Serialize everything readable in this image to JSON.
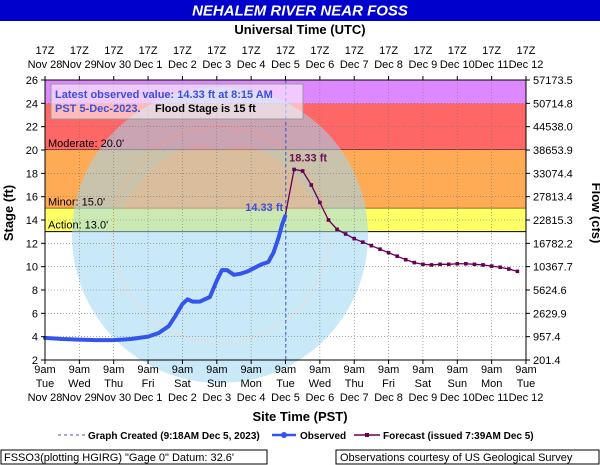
{
  "title": "NEHALEM RIVER NEAR FOSS",
  "top_axis_title": "Universal Time (UTC)",
  "bottom_axis_title": "Site Time (PST)",
  "left_axis_title": "Stage (ft)",
  "right_axis_title": "Flow (cfs)",
  "info_box": {
    "line1": "Latest observed value: 14.33 ft at 8:15 AM",
    "line2a": "PST 5-Dec-2023.",
    "line2b": "Flood Stage is 15 ft"
  },
  "peak_label": "18.33 ft",
  "latest_label": "14.33 ft",
  "flood_zones": [
    {
      "label": "Moderate: 20.0'",
      "from": 20,
      "to": 26,
      "color": "#ff6666"
    },
    {
      "label": "Minor: 15.0'",
      "from": 15,
      "to": 20,
      "color": "#ffaa55"
    },
    {
      "label": "Action: 13.0'",
      "from": 13,
      "to": 15,
      "color": "#ffff66"
    }
  ],
  "top_band_color": "#dd88ff",
  "legend": {
    "graph_created": "Graph Created (9:18AM Dec 5, 2023)",
    "observed": "Observed",
    "forecast": "Forecast (issued 7:39AM Dec 5)"
  },
  "footer": {
    "left": "FSSO3(plotting HGIRG) \"Gage 0\" Datum: 32.6'",
    "right": "Observations courtesy of US Geological Survey"
  },
  "colors": {
    "observed": "#3355ee",
    "forecast": "#660055",
    "title_bg": "#0000cc",
    "created_line": "#3355ee"
  },
  "chart_data": {
    "type": "line",
    "x_unit": "days after 9am Nov 28 (PST)",
    "xlim": [
      0,
      14
    ],
    "ylim": [
      2,
      26
    ],
    "y_ticks": [
      2,
      4,
      6,
      8,
      10,
      12,
      14,
      16,
      18,
      20,
      22,
      24,
      26
    ],
    "flow_ticks": [
      "201.4",
      "957.4",
      "2629.9",
      "5624.6",
      "10367.7",
      "16782.2",
      "22815.3",
      "27813.4",
      "33074.4",
      "38653.9",
      "44538.0",
      "50714.8",
      "57173.5"
    ],
    "bottom_ticks": [
      {
        "time": "9am",
        "day": "Tue",
        "date": "Nov 28"
      },
      {
        "time": "9am",
        "day": "Wed",
        "date": "Nov 29"
      },
      {
        "time": "9am",
        "day": "Thu",
        "date": "Nov 30"
      },
      {
        "time": "9am",
        "day": "Fri",
        "date": "Dec 1"
      },
      {
        "time": "9am",
        "day": "Sat",
        "date": "Dec 2"
      },
      {
        "time": "9am",
        "day": "Sun",
        "date": "Dec 3"
      },
      {
        "time": "9am",
        "day": "Mon",
        "date": "Dec 4"
      },
      {
        "time": "9am",
        "day": "Tue",
        "date": "Dec 5"
      },
      {
        "time": "9am",
        "day": "Wed",
        "date": "Dec 6"
      },
      {
        "time": "9am",
        "day": "Thu",
        "date": "Dec 7"
      },
      {
        "time": "9am",
        "day": "Fri",
        "date": "Dec 8"
      },
      {
        "time": "9am",
        "day": "Sat",
        "date": "Dec 9"
      },
      {
        "time": "9am",
        "day": "Sun",
        "date": "Dec 10"
      },
      {
        "time": "9am",
        "day": "Mon",
        "date": "Dec 11"
      },
      {
        "time": "9am",
        "day": "Tue",
        "date": "Dec 12"
      }
    ],
    "top_ticks": [
      {
        "time": "17Z",
        "date": "Nov 28"
      },
      {
        "time": "17Z",
        "date": "Nov 29"
      },
      {
        "time": "17Z",
        "date": "Nov 30"
      },
      {
        "time": "17Z",
        "date": "Dec 1"
      },
      {
        "time": "17Z",
        "date": "Dec 2"
      },
      {
        "time": "17Z",
        "date": "Dec 3"
      },
      {
        "time": "17Z",
        "date": "Dec 4"
      },
      {
        "time": "17Z",
        "date": "Dec 5"
      },
      {
        "time": "17Z",
        "date": "Dec 6"
      },
      {
        "time": "17Z",
        "date": "Dec 7"
      },
      {
        "time": "17Z",
        "date": "Dec 8"
      },
      {
        "time": "17Z",
        "date": "Dec 9"
      },
      {
        "time": "17Z",
        "date": "Dec 10"
      },
      {
        "time": "17Z",
        "date": "Dec 11"
      },
      {
        "time": "17Z",
        "date": "Dec 12"
      }
    ],
    "graph_created_x": 7.01,
    "series": [
      {
        "name": "Observed",
        "x": [
          0,
          0.5,
          1,
          1.5,
          2,
          2.5,
          3,
          3.3,
          3.6,
          3.8,
          4.0,
          4.15,
          4.3,
          4.5,
          4.8,
          5.0,
          5.15,
          5.3,
          5.5,
          5.7,
          5.9,
          6.1,
          6.3,
          6.5,
          6.65,
          6.8,
          6.9,
          6.99
        ],
        "values": [
          3.9,
          3.8,
          3.75,
          3.7,
          3.7,
          3.8,
          4.0,
          4.3,
          4.9,
          5.8,
          6.8,
          7.2,
          7.0,
          7.0,
          7.4,
          8.8,
          9.7,
          9.7,
          9.3,
          9.4,
          9.6,
          9.9,
          10.2,
          10.4,
          11.2,
          12.5,
          13.6,
          14.33
        ]
      },
      {
        "name": "Forecast",
        "x": [
          6.99,
          7.25,
          7.5,
          7.75,
          8.0,
          8.25,
          8.5,
          8.75,
          9.0,
          9.25,
          9.5,
          9.75,
          10.0,
          10.25,
          10.5,
          10.75,
          11.0,
          11.25,
          11.5,
          11.75,
          12.0,
          12.25,
          12.5,
          12.75,
          13.0,
          13.25,
          13.5,
          13.75
        ],
        "values": [
          14.33,
          18.33,
          18.2,
          17.0,
          15.5,
          14.0,
          13.2,
          12.8,
          12.4,
          12.1,
          11.8,
          11.5,
          11.2,
          10.9,
          10.6,
          10.35,
          10.2,
          10.15,
          10.2,
          10.2,
          10.25,
          10.25,
          10.2,
          10.15,
          10.05,
          9.95,
          9.8,
          9.6
        ]
      }
    ]
  }
}
